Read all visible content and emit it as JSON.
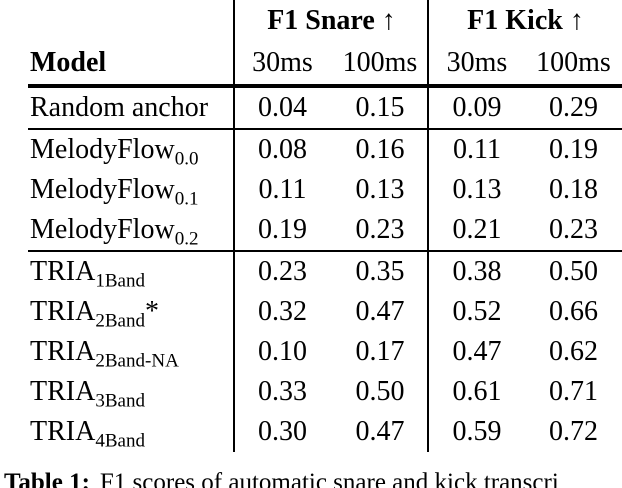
{
  "table": {
    "group_headers": [
      "F1 Snare ↑",
      "F1 Kick ↑"
    ],
    "column_headers": [
      "Model",
      "30ms",
      "100ms",
      "30ms",
      "100ms"
    ],
    "rows": [
      {
        "model": {
          "base": "Random anchor",
          "sub": "",
          "suffix": ""
        },
        "values": [
          "0.04",
          "0.15",
          "0.09",
          "0.29"
        ]
      },
      {
        "model": {
          "base": "MelodyFlow",
          "sub": "0.0",
          "suffix": ""
        },
        "values": [
          "0.08",
          "0.16",
          "0.11",
          "0.19"
        ]
      },
      {
        "model": {
          "base": "MelodyFlow",
          "sub": "0.1",
          "suffix": ""
        },
        "values": [
          "0.11",
          "0.13",
          "0.13",
          "0.18"
        ]
      },
      {
        "model": {
          "base": "MelodyFlow",
          "sub": "0.2",
          "suffix": ""
        },
        "values": [
          "0.19",
          "0.23",
          "0.21",
          "0.23"
        ]
      },
      {
        "model": {
          "base": "TRIA",
          "sub": "1Band",
          "suffix": ""
        },
        "values": [
          "0.23",
          "0.35",
          "0.38",
          "0.50"
        ]
      },
      {
        "model": {
          "base": "TRIA",
          "sub": "2Band",
          "suffix": "*"
        },
        "values": [
          "0.32",
          "0.47",
          "0.52",
          "0.66"
        ]
      },
      {
        "model": {
          "base": "TRIA",
          "sub": "2Band-NA",
          "suffix": ""
        },
        "values": [
          "0.10",
          "0.17",
          "0.47",
          "0.62"
        ]
      },
      {
        "model": {
          "base": "TRIA",
          "sub": "3Band",
          "suffix": ""
        },
        "values": [
          "0.33",
          "0.50",
          "0.61",
          "0.71"
        ]
      },
      {
        "model": {
          "base": "TRIA",
          "sub": "4Band",
          "suffix": ""
        },
        "values": [
          "0.30",
          "0.47",
          "0.59",
          "0.72"
        ]
      }
    ]
  },
  "caption": {
    "label": "Table 1:",
    "text": "F1 scores of automatic snare and kick transcri"
  },
  "colors": {
    "text": "#000000",
    "background": "#ffffff",
    "rule": "#000000"
  }
}
